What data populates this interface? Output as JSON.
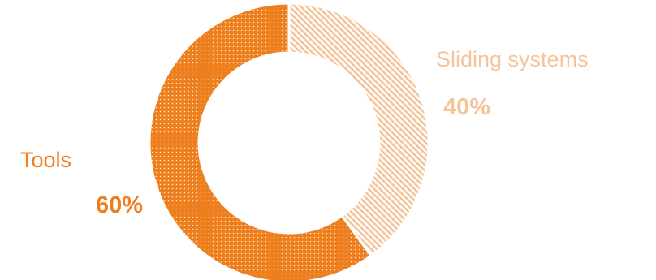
{
  "chart_data": {
    "type": "pie",
    "subtype": "donut",
    "slices": [
      {
        "name": "Sliding systems",
        "percent_label": "40%",
        "value": 40,
        "color": "#f4c49a",
        "pattern": "diagonal-stripes"
      },
      {
        "name": "Tools",
        "percent_label": "60%",
        "value": 60,
        "color": "#ee7f1f",
        "pattern": "dots"
      }
    ],
    "start": "top",
    "direction": "clockwise",
    "legend": "none"
  }
}
